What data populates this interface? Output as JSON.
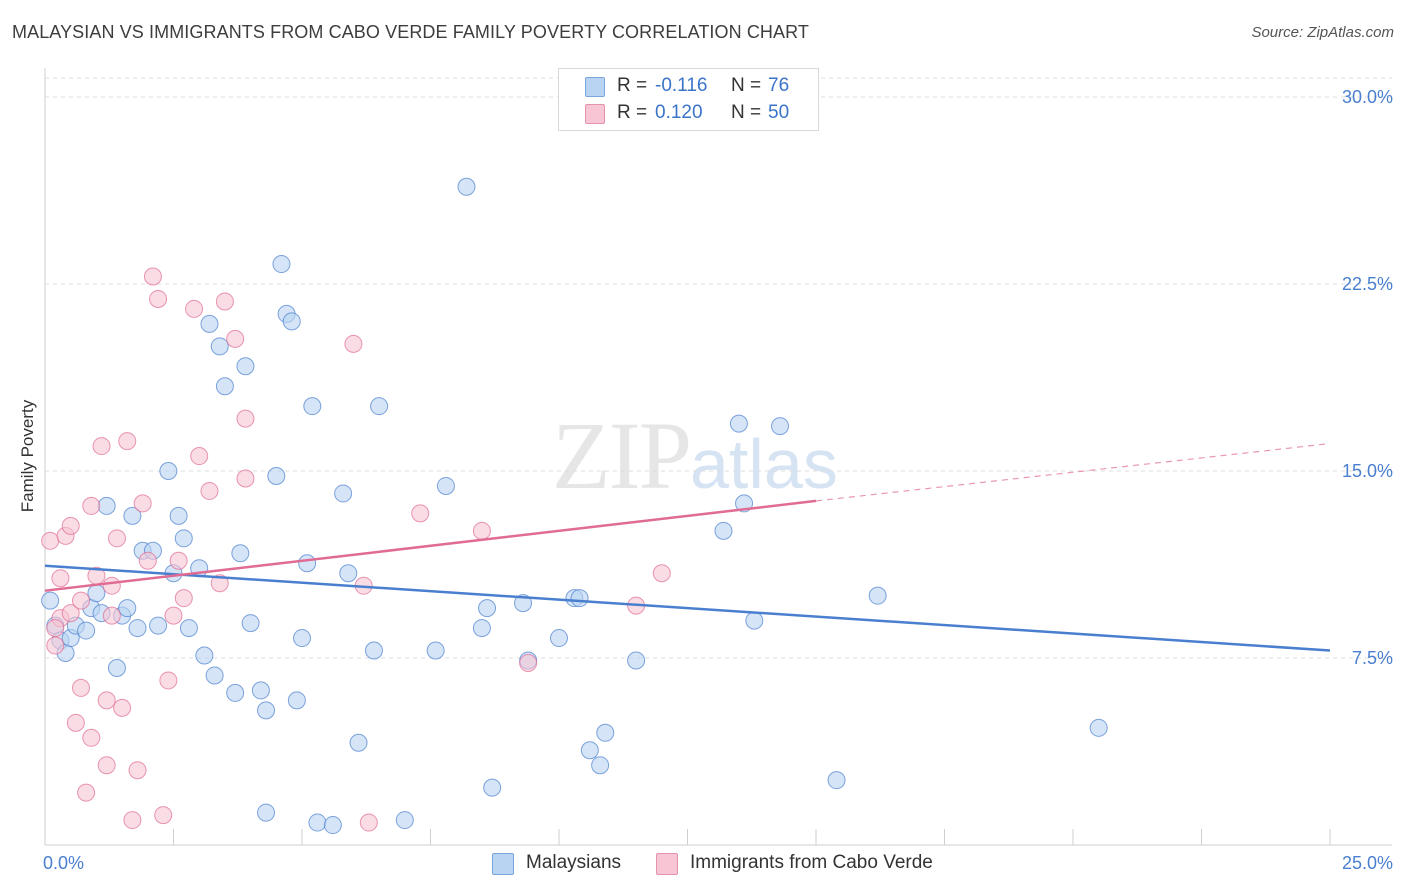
{
  "header": {
    "title": "MALAYSIAN VS IMMIGRANTS FROM CABO VERDE FAMILY POVERTY CORRELATION CHART",
    "source": "Source: ZipAtlas.com"
  },
  "watermark": {
    "zip": "ZIP",
    "atlas": "atlas"
  },
  "legend": {
    "rows": [
      {
        "r_label": "R =",
        "r_value": "-0.116",
        "n_label": "N =",
        "n_value": "76",
        "color": "#b9d3f2"
      },
      {
        "r_label": "R =",
        "r_value": "0.120",
        "n_label": "N =",
        "n_value": "50",
        "color": "#f7c5d4"
      }
    ]
  },
  "bottom_legend": {
    "items": [
      {
        "label": "Malaysians",
        "color": "#b9d3f2"
      },
      {
        "label": "Immigrants from Cabo Verde",
        "color": "#f7c5d4"
      }
    ]
  },
  "chart_data": {
    "type": "scatter",
    "title": "MALAYSIAN VS IMMIGRANTS FROM CABO VERDE FAMILY POVERTY CORRELATION CHART",
    "xlabel": "",
    "ylabel": "Family Poverty",
    "xlim": [
      0,
      25
    ],
    "ylim": [
      0,
      30
    ],
    "x_tick_labels": [
      {
        "value": 0,
        "label": "0.0%"
      },
      {
        "value": 25,
        "label": "25.0%"
      }
    ],
    "y_tick_labels": [
      {
        "value": 7.5,
        "label": "7.5%"
      },
      {
        "value": 15,
        "label": "15.0%"
      },
      {
        "value": 22.5,
        "label": "22.5%"
      },
      {
        "value": 30,
        "label": "30.0%"
      }
    ],
    "grid": true,
    "legend_position": "top-center",
    "series": [
      {
        "name": "Malaysians",
        "color": "#4a7fcf",
        "fill": "#b9d3f2",
        "trend": {
          "x": [
            0,
            25
          ],
          "y": [
            11.2,
            7.8
          ],
          "dashed_from": null
        },
        "points": [
          [
            0.2,
            8.8
          ],
          [
            0.3,
            8.2
          ],
          [
            0.4,
            7.7
          ],
          [
            0.5,
            8.3
          ],
          [
            0.6,
            8.8
          ],
          [
            0.8,
            8.6
          ],
          [
            0.9,
            9.5
          ],
          [
            1.0,
            10.1
          ],
          [
            1.1,
            9.3
          ],
          [
            1.2,
            13.6
          ],
          [
            1.4,
            7.1
          ],
          [
            1.5,
            9.2
          ],
          [
            1.6,
            9.5
          ],
          [
            1.7,
            13.2
          ],
          [
            1.8,
            8.7
          ],
          [
            1.9,
            11.8
          ],
          [
            2.1,
            11.8
          ],
          [
            2.2,
            8.8
          ],
          [
            2.4,
            15.0
          ],
          [
            2.5,
            10.9
          ],
          [
            2.6,
            13.2
          ],
          [
            2.7,
            12.3
          ],
          [
            2.8,
            8.7
          ],
          [
            3.0,
            11.1
          ],
          [
            3.1,
            7.6
          ],
          [
            3.2,
            20.9
          ],
          [
            3.3,
            6.8
          ],
          [
            3.4,
            20.0
          ],
          [
            3.5,
            18.4
          ],
          [
            3.7,
            6.1
          ],
          [
            3.8,
            11.7
          ],
          [
            3.9,
            19.2
          ],
          [
            4.0,
            8.9
          ],
          [
            4.2,
            6.2
          ],
          [
            4.3,
            1.3
          ],
          [
            4.3,
            5.4
          ],
          [
            4.5,
            14.8
          ],
          [
            4.6,
            23.3
          ],
          [
            4.7,
            21.3
          ],
          [
            4.8,
            21.0
          ],
          [
            4.9,
            5.8
          ],
          [
            5.0,
            8.3
          ],
          [
            5.1,
            11.3
          ],
          [
            5.2,
            17.6
          ],
          [
            5.3,
            0.9
          ],
          [
            5.6,
            0.8
          ],
          [
            5.8,
            14.1
          ],
          [
            5.9,
            10.9
          ],
          [
            6.1,
            4.1
          ],
          [
            6.4,
            7.8
          ],
          [
            6.5,
            17.6
          ],
          [
            7.0,
            1.0
          ],
          [
            7.6,
            7.8
          ],
          [
            7.8,
            14.4
          ],
          [
            8.2,
            26.4
          ],
          [
            8.5,
            8.7
          ],
          [
            8.6,
            9.5
          ],
          [
            8.7,
            2.3
          ],
          [
            9.3,
            9.7
          ],
          [
            9.4,
            7.4
          ],
          [
            10.0,
            8.3
          ],
          [
            10.3,
            9.9
          ],
          [
            10.4,
            9.9
          ],
          [
            10.6,
            3.8
          ],
          [
            10.8,
            3.2
          ],
          [
            10.9,
            4.5
          ],
          [
            11.5,
            7.4
          ],
          [
            13.2,
            12.6
          ],
          [
            13.5,
            16.9
          ],
          [
            13.6,
            13.7
          ],
          [
            13.8,
            9.0
          ],
          [
            14.3,
            16.8
          ],
          [
            15.4,
            2.6
          ],
          [
            16.2,
            10.0
          ],
          [
            20.5,
            4.7
          ],
          [
            0.1,
            9.8
          ]
        ]
      },
      {
        "name": "Immigrants from Cabo Verde",
        "color": "#e06b93",
        "fill": "#f7c5d4",
        "trend": {
          "x": [
            0,
            15.0
          ],
          "y": [
            10.2,
            13.8
          ],
          "dashed_to": [
            25,
            16.1
          ]
        },
        "points": [
          [
            0.1,
            12.2
          ],
          [
            0.2,
            8.0
          ],
          [
            0.3,
            9.1
          ],
          [
            0.3,
            10.7
          ],
          [
            0.4,
            12.4
          ],
          [
            0.5,
            9.3
          ],
          [
            0.5,
            12.8
          ],
          [
            0.6,
            4.9
          ],
          [
            0.7,
            9.8
          ],
          [
            0.7,
            6.3
          ],
          [
            0.8,
            2.1
          ],
          [
            0.9,
            13.6
          ],
          [
            0.9,
            4.3
          ],
          [
            1.0,
            10.8
          ],
          [
            1.1,
            16.0
          ],
          [
            1.2,
            5.8
          ],
          [
            1.2,
            3.2
          ],
          [
            1.3,
            9.2
          ],
          [
            1.4,
            12.3
          ],
          [
            1.5,
            5.5
          ],
          [
            1.6,
            16.2
          ],
          [
            1.7,
            1.0
          ],
          [
            1.8,
            3.0
          ],
          [
            1.9,
            13.7
          ],
          [
            2.0,
            11.4
          ],
          [
            2.1,
            22.8
          ],
          [
            2.2,
            21.9
          ],
          [
            2.3,
            1.2
          ],
          [
            2.4,
            6.6
          ],
          [
            2.5,
            9.2
          ],
          [
            2.7,
            9.9
          ],
          [
            2.9,
            21.5
          ],
          [
            3.0,
            15.6
          ],
          [
            3.2,
            14.2
          ],
          [
            3.4,
            10.5
          ],
          [
            3.5,
            21.8
          ],
          [
            3.7,
            20.3
          ],
          [
            3.9,
            17.1
          ],
          [
            3.9,
            14.7
          ],
          [
            6.0,
            20.1
          ],
          [
            6.2,
            10.4
          ],
          [
            6.3,
            0.9
          ],
          [
            7.3,
            13.3
          ],
          [
            8.5,
            12.6
          ],
          [
            9.4,
            7.3
          ],
          [
            11.5,
            9.6
          ],
          [
            12.0,
            10.9
          ],
          [
            0.2,
            8.7
          ],
          [
            1.3,
            10.4
          ],
          [
            2.6,
            11.4
          ]
        ]
      }
    ]
  }
}
